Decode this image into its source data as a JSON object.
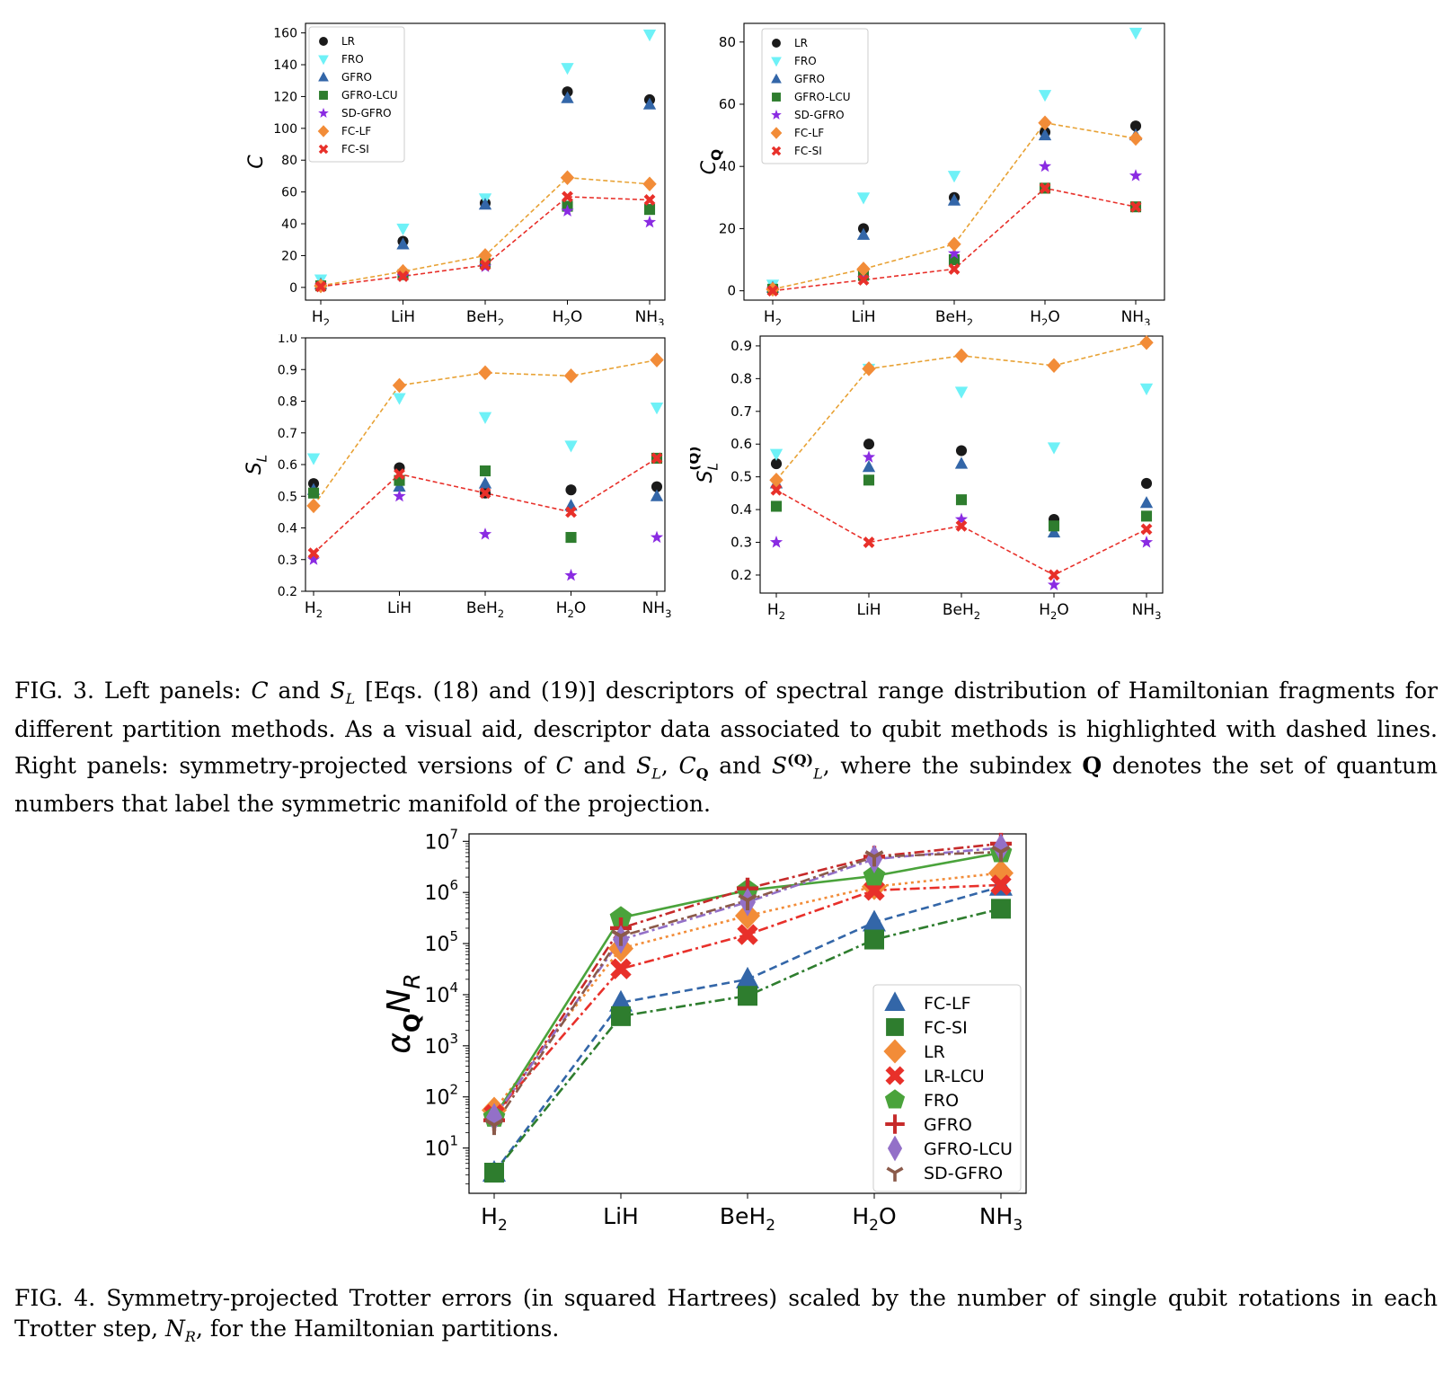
{
  "molecules": [
    "H2",
    "LiH",
    "BeH2",
    "H2O",
    "NH3"
  ],
  "chart_data": [
    {
      "id": "C",
      "type": "scatter",
      "ylabel": "C",
      "ylim": [
        -8,
        166
      ],
      "yticks": [
        0,
        20,
        40,
        60,
        80,
        100,
        120,
        140,
        160
      ],
      "legend_position": "top-left",
      "series": [
        {
          "name": "LR",
          "marker": "circle",
          "color": "#1a1a1a",
          "values": [
            1,
            29,
            53,
            123,
            118
          ]
        },
        {
          "name": "FRO",
          "marker": "tri-down",
          "color": "#6ef1f7",
          "values": [
            5,
            37,
            56,
            138,
            159
          ]
        },
        {
          "name": "GFRO",
          "marker": "tri-up",
          "color": "#3366a8",
          "values": [
            2,
            27,
            52,
            119,
            115
          ]
        },
        {
          "name": "GFRO-LCU",
          "marker": "square",
          "color": "#2e7d2e",
          "values": [
            1,
            8,
            15,
            51,
            49
          ]
        },
        {
          "name": "SD-GFRO",
          "marker": "star",
          "color": "#8a2be2",
          "values": [
            1,
            7,
            13,
            48,
            41
          ]
        },
        {
          "name": "FC-LF",
          "marker": "diamond",
          "color": "#f28c38",
          "values": [
            1,
            10,
            20,
            69,
            65
          ],
          "line": "dashed",
          "line_color": "#e8a235"
        },
        {
          "name": "FC-SI",
          "marker": "x",
          "color": "#e8302a",
          "values": [
            0.5,
            7,
            14,
            57,
            55
          ],
          "line": "dashed",
          "line_color": "#e8302a"
        }
      ]
    },
    {
      "id": "CQ",
      "type": "scatter",
      "ylabel": "C_Q",
      "ylim": [
        -3,
        86
      ],
      "yticks": [
        0,
        20,
        40,
        60,
        80
      ],
      "legend_position": "top-left",
      "series": [
        {
          "name": "LR",
          "marker": "circle",
          "color": "#1a1a1a",
          "values": [
            1,
            20,
            30,
            51,
            53
          ]
        },
        {
          "name": "FRO",
          "marker": "tri-down",
          "color": "#6ef1f7",
          "values": [
            2,
            30,
            37,
            63,
            83
          ]
        },
        {
          "name": "GFRO",
          "marker": "tri-up",
          "color": "#3366a8",
          "values": [
            1,
            18,
            29,
            50,
            50
          ]
        },
        {
          "name": "GFRO-LCU",
          "marker": "square",
          "color": "#2e7d2e",
          "values": [
            0.5,
            5,
            10,
            33,
            27
          ]
        },
        {
          "name": "SD-GFRO",
          "marker": "star",
          "color": "#8a2be2",
          "values": [
            0.5,
            4,
            12,
            40,
            37
          ]
        },
        {
          "name": "FC-LF",
          "marker": "diamond",
          "color": "#f28c38",
          "values": [
            0.5,
            7,
            15,
            54,
            49
          ],
          "line": "dashed",
          "line_color": "#e8a235"
        },
        {
          "name": "FC-SI",
          "marker": "x",
          "color": "#e8302a",
          "values": [
            0,
            3.5,
            7,
            33,
            27
          ],
          "line": "dashed",
          "line_color": "#e8302a"
        }
      ]
    },
    {
      "id": "SL",
      "type": "scatter",
      "ylabel": "S_L",
      "ylim": [
        0.2,
        1.0
      ],
      "yticks": [
        0.2,
        0.3,
        0.4,
        0.5,
        0.6,
        0.7,
        0.8,
        0.9,
        1.0
      ],
      "legend_position": "none",
      "series": [
        {
          "name": "LR",
          "marker": "circle",
          "color": "#1a1a1a",
          "values": [
            0.54,
            0.59,
            0.51,
            0.52,
            0.53
          ]
        },
        {
          "name": "FRO",
          "marker": "tri-down",
          "color": "#6ef1f7",
          "values": [
            0.62,
            0.81,
            0.75,
            0.66,
            0.78
          ]
        },
        {
          "name": "GFRO",
          "marker": "tri-up",
          "color": "#3366a8",
          "values": [
            0.52,
            0.53,
            0.54,
            0.47,
            0.5
          ]
        },
        {
          "name": "GFRO-LCU",
          "marker": "square",
          "color": "#2e7d2e",
          "values": [
            0.51,
            0.55,
            0.58,
            0.37,
            0.62
          ]
        },
        {
          "name": "SD-GFRO",
          "marker": "star",
          "color": "#8a2be2",
          "values": [
            0.3,
            0.5,
            0.38,
            0.25,
            0.37
          ]
        },
        {
          "name": "FC-LF",
          "marker": "diamond",
          "color": "#f28c38",
          "values": [
            0.47,
            0.85,
            0.89,
            0.88,
            0.93
          ],
          "line": "dashed",
          "line_color": "#e8a235"
        },
        {
          "name": "FC-SI",
          "marker": "x",
          "color": "#e8302a",
          "values": [
            0.32,
            0.57,
            0.51,
            0.45,
            0.62
          ],
          "line": "dashed",
          "line_color": "#e8302a"
        }
      ]
    },
    {
      "id": "SLQ",
      "type": "scatter",
      "ylabel": "S_L^(Q)",
      "ylim": [
        0.145,
        0.93
      ],
      "yticks": [
        0.2,
        0.3,
        0.4,
        0.5,
        0.6,
        0.7,
        0.8,
        0.9
      ],
      "legend_position": "none",
      "series": [
        {
          "name": "LR",
          "marker": "circle",
          "color": "#1a1a1a",
          "values": [
            0.54,
            0.6,
            0.58,
            0.37,
            0.48
          ]
        },
        {
          "name": "FRO",
          "marker": "tri-down",
          "color": "#6ef1f7",
          "values": [
            0.57,
            0.83,
            0.76,
            0.59,
            0.77
          ]
        },
        {
          "name": "GFRO",
          "marker": "tri-up",
          "color": "#3366a8",
          "values": [
            0.48,
            0.53,
            0.54,
            0.33,
            0.42
          ]
        },
        {
          "name": "GFRO-LCU",
          "marker": "square",
          "color": "#2e7d2e",
          "values": [
            0.41,
            0.49,
            0.43,
            0.35,
            0.38
          ]
        },
        {
          "name": "SD-GFRO",
          "marker": "star",
          "color": "#8a2be2",
          "values": [
            0.3,
            0.56,
            0.37,
            0.17,
            0.3
          ]
        },
        {
          "name": "FC-LF",
          "marker": "diamond",
          "color": "#f28c38",
          "values": [
            0.49,
            0.83,
            0.87,
            0.84,
            0.91
          ],
          "line": "dashed",
          "line_color": "#e8a235"
        },
        {
          "name": "FC-SI",
          "marker": "x",
          "color": "#e8302a",
          "values": [
            0.46,
            0.3,
            0.35,
            0.2,
            0.34
          ],
          "line": "dashed",
          "line_color": "#e8302a"
        }
      ]
    },
    {
      "id": "trotter",
      "type": "line",
      "ylabel": "α_Q N_R",
      "yscale": "log",
      "ylim": [
        1.3,
        14000000
      ],
      "yticks": [
        10,
        100,
        1000,
        10000,
        100000,
        1000000,
        10000000
      ],
      "legend_position": "lower-right",
      "series": [
        {
          "name": "FC-LF",
          "marker": "tri-up",
          "color": "#3366a8",
          "dash": "dashed",
          "values": [
            3.3,
            7000,
            20000,
            260000,
            1300000
          ]
        },
        {
          "name": "FC-SI",
          "marker": "square",
          "color": "#2e7d2e",
          "dash": "dashdot",
          "values": [
            3.3,
            3800,
            9500,
            120000,
            480000
          ]
        },
        {
          "name": "LR",
          "marker": "diamond",
          "color": "#f28c38",
          "dash": "dotted",
          "values": [
            55,
            80000,
            350000,
            1300000,
            2400000
          ]
        },
        {
          "name": "LR-LCU",
          "marker": "x",
          "color": "#e8302a",
          "dash": "dashdot",
          "values": [
            45,
            32000,
            150000,
            1100000,
            1400000
          ]
        },
        {
          "name": "FRO",
          "marker": "pentagon",
          "color": "#4aa33b",
          "dash": "solid",
          "values": [
            40,
            320000,
            1100000,
            2100000,
            6000000
          ]
        },
        {
          "name": "GFRO",
          "marker": "plus",
          "color": "#c62a2a",
          "dash": "dashdot",
          "values": [
            35,
            200000,
            1200000,
            5000000,
            9000000
          ]
        },
        {
          "name": "GFRO-LCU",
          "marker": "thin-diamond",
          "color": "#9370c8",
          "dash": "dashdot",
          "values": [
            40,
            120000,
            650000,
            4500000,
            7500000
          ]
        },
        {
          "name": "SD-GFRO",
          "marker": "tri-y",
          "color": "#8b5a4a",
          "dash": "dashdot",
          "values": [
            28,
            140000,
            700000,
            5000000,
            6200000
          ]
        }
      ]
    }
  ],
  "captions": {
    "fig3": [
      {
        "t": "FIG. 3. Left panels: ",
        "s": ""
      },
      {
        "t": "C",
        "s": "i"
      },
      {
        "t": " and ",
        "s": ""
      },
      {
        "t": "S",
        "s": "i"
      },
      {
        "t": "L",
        "s": "sub-i"
      },
      {
        "t": " [Eqs. (18) and (19)] descriptors of spectral range distribution of Hamiltonian fragments for different partition methods. As a visual aid, descriptor data associated to qubit methods is highlighted with dashed lines. Right panels: symmetry-projected versions of ",
        "s": ""
      },
      {
        "t": "C",
        "s": "i"
      },
      {
        "t": " and ",
        "s": ""
      },
      {
        "t": "S",
        "s": "i"
      },
      {
        "t": "L",
        "s": "sub-i"
      },
      {
        "t": ", ",
        "s": ""
      },
      {
        "t": "C",
        "s": "i"
      },
      {
        "t": "Q",
        "s": "sub-b"
      },
      {
        "t": " and ",
        "s": ""
      },
      {
        "t": "S",
        "s": "i"
      },
      {
        "t": "(Q)",
        "s": "sup-b"
      },
      {
        "t": "L",
        "s": "sub-i"
      },
      {
        "t": ", where the subindex ",
        "s": ""
      },
      {
        "t": "Q",
        "s": "b"
      },
      {
        "t": " denotes the set of quantum numbers that label the symmetric manifold of the projection.",
        "s": ""
      }
    ],
    "fig4": [
      {
        "t": "FIG. 4.  Symmetry-projected Trotter errors (in squared Hartrees) scaled by the number of single qubit rotations in each Trotter step, ",
        "s": ""
      },
      {
        "t": "N",
        "s": "i"
      },
      {
        "t": "R",
        "s": "sub-i"
      },
      {
        "t": ", for the Hamiltonian partitions.",
        "s": ""
      }
    ]
  }
}
